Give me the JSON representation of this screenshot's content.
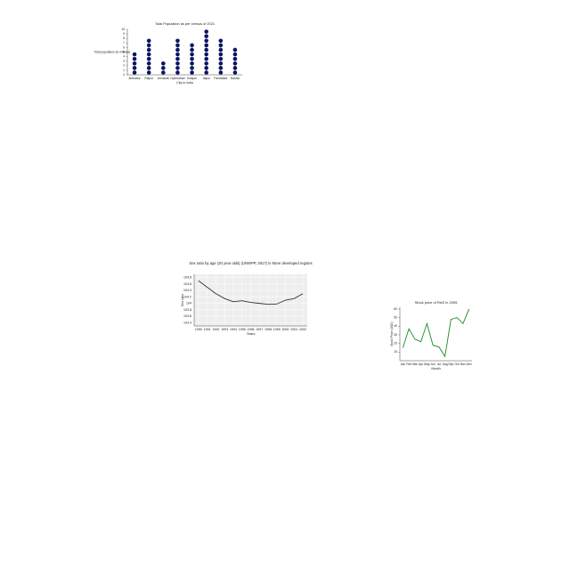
{
  "chart_data": [
    {
      "type": "dot",
      "title": "Total Population as per census of 2021",
      "x_label": "City in India",
      "y_label": "Total population (in millions)",
      "categories": [
        "Ambattur",
        "Raipur",
        "Amravati",
        "Hyderabad",
        "Solapur",
        "Jaipur",
        "Faridabad",
        "Nashik"
      ],
      "values": [
        5,
        8,
        3,
        8,
        7,
        10,
        8,
        6
      ],
      "color": "#0b1560",
      "ylim": [
        0,
        10
      ],
      "yticks": [
        0,
        1,
        2,
        3,
        4,
        5,
        6,
        7,
        8,
        9,
        10
      ]
    },
    {
      "type": "line",
      "title": "Sex ratio by age (20 year olds) (UNWPP, 2017) in More developed regions",
      "x_label": "Years",
      "y_label": "Sex ratio",
      "categories": [
        "1990",
        "1991",
        "1992",
        "1993",
        "1994",
        "1995",
        "1996",
        "1997",
        "1998",
        "1999",
        "2000",
        "2001",
        "2002"
      ],
      "values": [
        104.7,
        104.5,
        104.3,
        104.15,
        104.05,
        104.08,
        104.03,
        104.0,
        103.97,
        103.98,
        104.1,
        104.15,
        104.3
      ],
      "color": "#333333",
      "grid": true,
      "ylim": [
        103.3,
        104.9
      ],
      "yticks": [
        103.4,
        103.6,
        103.8,
        104,
        104.2,
        104.4,
        104.6,
        104.8
      ]
    },
    {
      "type": "line",
      "title": "Stock price of RAS in 2005",
      "x_label": "Month",
      "y_label": "Stock Price (USD)",
      "categories": [
        "Jan",
        "Feb",
        "Mar",
        "Apr",
        "May",
        "Jun",
        "Jul",
        "Aug",
        "Sep",
        "Oct",
        "Nov",
        "Dec"
      ],
      "values": [
        15,
        37,
        25,
        22,
        43,
        18,
        16,
        5,
        48,
        50,
        43,
        60
      ],
      "color": "#1a8a1a",
      "grid": false,
      "ylim": [
        0,
        62
      ],
      "yticks": [
        10,
        20,
        30,
        40,
        50,
        60
      ]
    }
  ]
}
